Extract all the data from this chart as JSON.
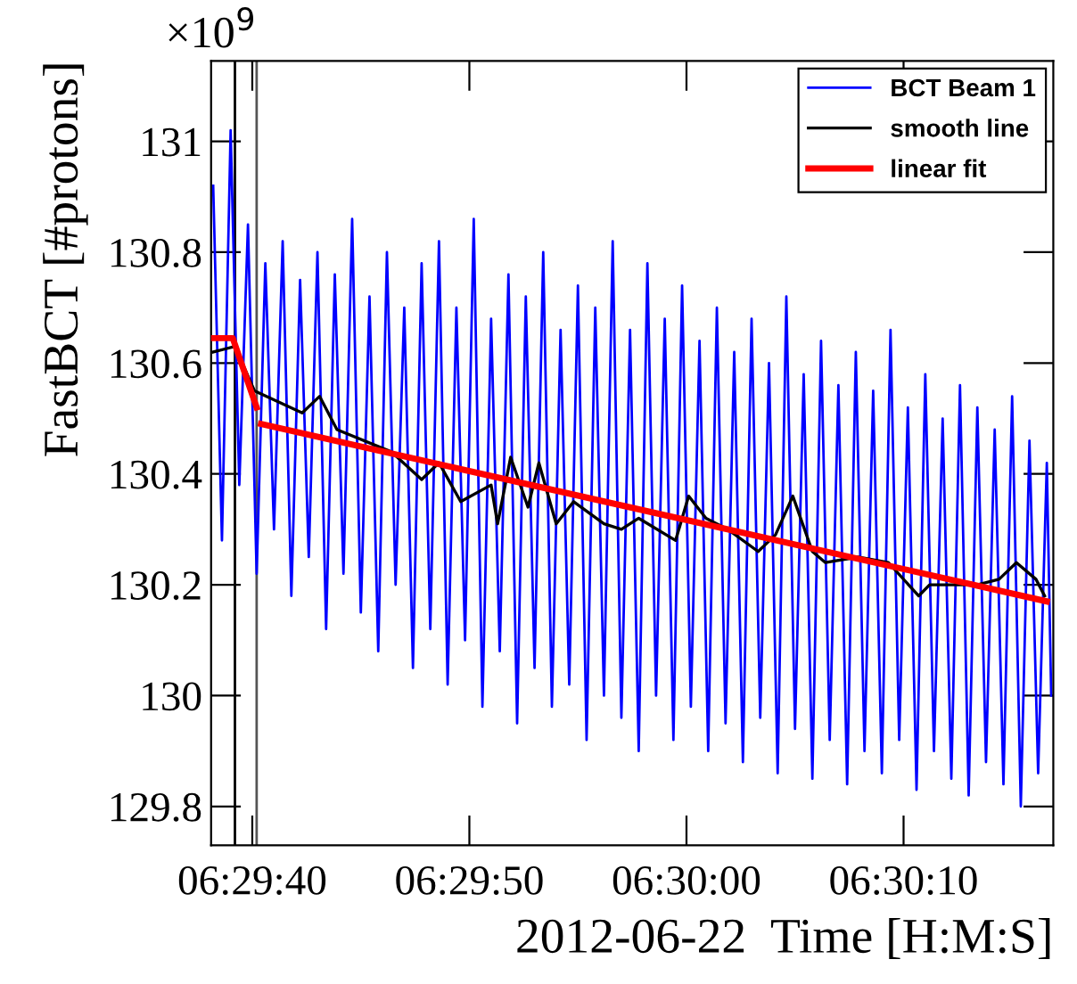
{
  "chart_data": {
    "type": "line",
    "xlabel": "2012-06-22  Time [H:M:S]",
    "ylabel": "FastBCT [#protons]",
    "annotations": [
      "×10$^{9}$"
    ],
    "xlim": [
      6.493917,
      6.504694
    ],
    "xticks": [
      {
        "value": 6.494444,
        "label": "06:29:40"
      },
      {
        "value": 6.497222,
        "label": "06:29:50"
      },
      {
        "value": 6.5,
        "label": "06:30:00"
      },
      {
        "value": 6.502778,
        "label": "06:30:10"
      }
    ],
    "ylim": [
      129.73,
      131.145
    ],
    "yticks": [
      129.8,
      130,
      130.2,
      130.4,
      130.6,
      130.8,
      131
    ],
    "grid": false,
    "legend": "top right",
    "marker": "none",
    "line_style": "solid",
    "ref_lines": [
      {
        "axis": "x",
        "value": 6.494222,
        "color": "#000000"
      },
      {
        "axis": "x",
        "value": 6.4945,
        "color": "#555555"
      }
    ],
    "series": [
      {
        "name": "BCT Beam 1",
        "color": "#0000ff",
        "x": [
          6.493944,
          6.494056,
          6.494167,
          6.494278,
          6.494389,
          6.4945,
          6.494611,
          6.494722,
          6.494833,
          6.494944,
          6.495056,
          6.495167,
          6.495278,
          6.495389,
          6.4955,
          6.495611,
          6.495722,
          6.495833,
          6.495944,
          6.496056,
          6.496167,
          6.496278,
          6.496389,
          6.4965,
          6.496611,
          6.496722,
          6.496833,
          6.496944,
          6.497056,
          6.497167,
          6.497278,
          6.497389,
          6.4975,
          6.497611,
          6.497722,
          6.497833,
          6.497944,
          6.498056,
          6.498167,
          6.498278,
          6.498389,
          6.4985,
          6.498611,
          6.498722,
          6.498833,
          6.498944,
          6.499056,
          6.499167,
          6.499278,
          6.499389,
          6.4995,
          6.499611,
          6.499722,
          6.499833,
          6.499944,
          6.500056,
          6.500167,
          6.500278,
          6.500389,
          6.5005,
          6.500611,
          6.500722,
          6.500833,
          6.500944,
          6.501056,
          6.501167,
          6.501278,
          6.501389,
          6.5015,
          6.501611,
          6.501722,
          6.501833,
          6.501944,
          6.502056,
          6.502167,
          6.502278,
          6.502389,
          6.5025,
          6.502611,
          6.502722,
          6.502833,
          6.502944,
          6.503056,
          6.503167,
          6.503278,
          6.503389,
          6.5035,
          6.503611,
          6.503722,
          6.503833,
          6.503944,
          6.504056,
          6.504167,
          6.504278,
          6.504389,
          6.5045,
          6.504611,
          6.504667
        ],
        "values": [
          130.92,
          130.28,
          131.02,
          130.38,
          130.85,
          130.22,
          130.78,
          130.3,
          130.82,
          130.18,
          130.75,
          130.25,
          130.8,
          130.12,
          130.76,
          130.22,
          130.86,
          130.15,
          130.72,
          130.08,
          130.8,
          130.2,
          130.7,
          130.05,
          130.78,
          130.12,
          130.82,
          130.02,
          130.7,
          130.1,
          130.86,
          129.98,
          130.68,
          130.08,
          130.76,
          129.95,
          130.72,
          130.05,
          130.8,
          129.98,
          130.66,
          130.02,
          130.74,
          129.92,
          130.7,
          130.0,
          130.82,
          129.96,
          130.66,
          129.9,
          130.78,
          130.0,
          130.68,
          129.92,
          130.74,
          129.98,
          130.64,
          129.9,
          130.7,
          129.95,
          130.62,
          129.88,
          130.68,
          129.96,
          130.6,
          129.86,
          130.72,
          129.94,
          130.58,
          129.85,
          130.64,
          129.92,
          130.56,
          129.84,
          130.62,
          129.9,
          130.55,
          129.86,
          130.66,
          129.92,
          130.52,
          129.83,
          130.58,
          129.9,
          130.5,
          129.85,
          130.56,
          129.82,
          130.52,
          129.88,
          130.48,
          129.84,
          130.54,
          129.8,
          130.46,
          129.86,
          130.42,
          130.0
        ]
      },
      {
        "name": "smooth line",
        "color": "#000000",
        "x": [
          6.493944,
          6.494222,
          6.494472,
          6.495083,
          6.495306,
          6.495528,
          6.496222,
          6.496611,
          6.496833,
          6.497111,
          6.4975,
          6.497583,
          6.49775,
          6.497972,
          6.498111,
          6.498333,
          6.498556,
          6.498944,
          6.499167,
          6.499389,
          6.499861,
          6.500028,
          6.50025,
          6.500528,
          6.500917,
          6.501139,
          6.501361,
          6.501611,
          6.501778,
          6.502194,
          6.502583,
          6.502972,
          6.503111,
          6.503417,
          6.503722,
          6.504,
          6.504222,
          6.504472,
          6.504583
        ],
        "values": [
          130.62,
          130.63,
          130.55,
          130.51,
          130.54,
          130.48,
          130.44,
          130.39,
          130.42,
          130.35,
          130.38,
          130.31,
          130.43,
          130.34,
          130.42,
          130.31,
          130.35,
          130.31,
          130.3,
          130.32,
          130.28,
          130.36,
          130.32,
          130.3,
          130.26,
          130.29,
          130.36,
          130.26,
          130.24,
          130.25,
          130.24,
          130.18,
          130.2,
          130.2,
          130.2,
          130.21,
          130.24,
          130.21,
          130.18
        ]
      },
      {
        "name": "linear fit",
        "color": "#ff0000",
        "x": [
          6.493917,
          6.494194,
          6.4945,
          6.494528,
          6.494556,
          6.504611
        ],
        "values": [
          130.645,
          130.645,
          130.52,
          null,
          130.49,
          130.17
        ]
      }
    ]
  }
}
